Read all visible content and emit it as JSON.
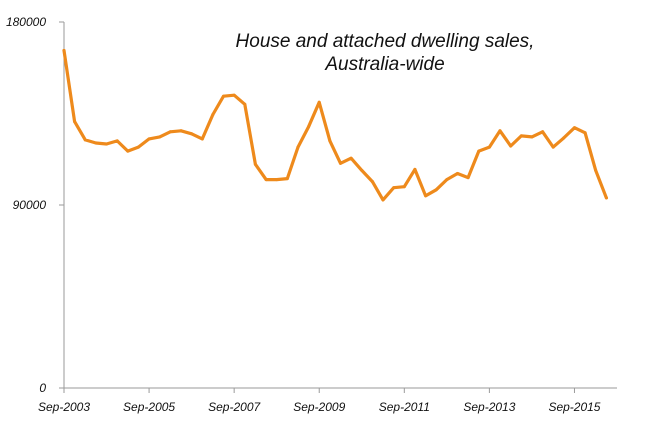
{
  "colors": {
    "series": "#EE8A1C",
    "axis": "#9a9a9a",
    "text": "#111111"
  },
  "chart_data": {
    "type": "line",
    "title_lines": [
      "House and attached dwelling sales,",
      "Australia-wide"
    ],
    "xlabel": "",
    "ylabel": "",
    "ylim": [
      0,
      180000
    ],
    "yticks": [
      0,
      90000,
      180000
    ],
    "ytick_labels": [
      "0",
      "90000",
      "180000"
    ],
    "xlim": [
      0,
      52
    ],
    "xticks": [
      0,
      8,
      16,
      24,
      32,
      40,
      48
    ],
    "xtick_labels": [
      "Sep-2003",
      "Sep-2005",
      "Sep-2007",
      "Sep-2009",
      "Sep-2011",
      "Sep-2013",
      "Sep-2015"
    ],
    "grid": false,
    "legend": "none",
    "series": [
      {
        "name": "House and attached dwelling sales",
        "x": [
          0,
          1,
          2,
          3,
          4,
          5,
          6,
          7,
          8,
          9,
          10,
          11,
          12,
          13,
          14,
          15,
          16,
          17,
          18,
          19,
          20,
          21,
          22,
          23,
          24,
          25,
          26,
          27,
          28,
          29,
          30,
          31,
          32,
          33,
          34,
          35,
          36,
          37,
          38,
          39,
          40,
          41,
          42,
          43,
          44,
          45,
          46,
          47,
          48,
          49,
          50,
          51,
          52
        ],
        "values": [
          166000,
          131000,
          122000,
          120500,
          120000,
          121500,
          116500,
          118500,
          122500,
          123500,
          126000,
          126500,
          125000,
          122500,
          134500,
          143500,
          144000,
          139500,
          110000,
          102500,
          102500,
          103000,
          118500,
          128500,
          140500,
          121500,
          110500,
          113000,
          107000,
          101500,
          92500,
          98500,
          99000,
          107500,
          94500,
          97500,
          102500,
          105500,
          103500,
          116500,
          118500,
          126500,
          119000,
          124000,
          123500,
          126000,
          118500,
          123000,
          128000,
          125500,
          107000,
          93500,
          null
        ]
      }
    ]
  }
}
